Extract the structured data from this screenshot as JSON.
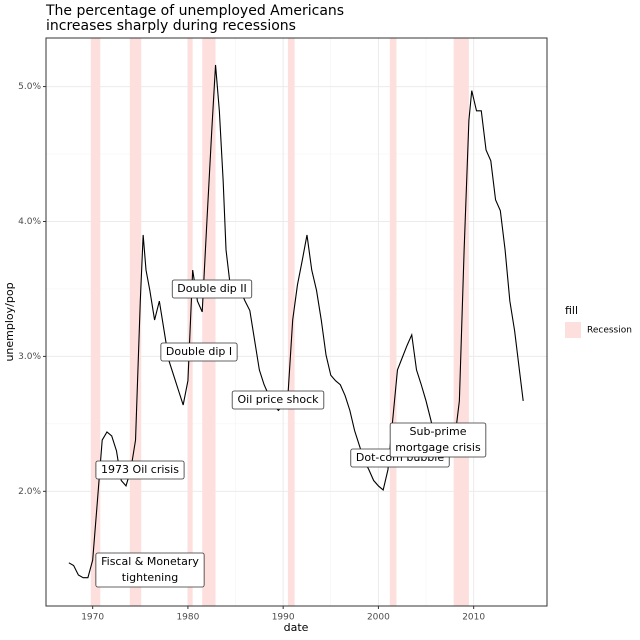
{
  "chart_data": {
    "type": "line",
    "title": [
      "The percentage of unemployed Americans",
      "increases sharply during recessions"
    ],
    "x_label": "date",
    "y_label": "unemploy/pop",
    "x": [
      1967.5,
      1968.0,
      1968.5,
      1969.0,
      1969.5,
      1970.0,
      1970.5,
      1971.0,
      1971.5,
      1972.0,
      1972.5,
      1973.0,
      1973.5,
      1974.0,
      1974.5,
      1975.0,
      1975.3,
      1975.6,
      1976.0,
      1976.5,
      1977.0,
      1977.5,
      1978.0,
      1978.5,
      1979.0,
      1979.5,
      1980.0,
      1980.5,
      1981.0,
      1981.5,
      1982.0,
      1982.5,
      1982.9,
      1983.3,
      1983.7,
      1984.0,
      1984.5,
      1985.0,
      1985.5,
      1986.0,
      1986.5,
      1987.0,
      1987.5,
      1988.0,
      1988.5,
      1989.0,
      1989.5,
      1990.0,
      1990.5,
      1991.0,
      1991.5,
      1992.0,
      1992.5,
      1993.0,
      1993.5,
      1994.0,
      1994.5,
      1995.0,
      1995.5,
      1996.0,
      1996.5,
      1997.0,
      1997.5,
      1998.0,
      1998.5,
      1999.0,
      1999.5,
      2000.0,
      2000.5,
      2001.0,
      2001.5,
      2002.0,
      2002.5,
      2003.0,
      2003.5,
      2004.0,
      2004.5,
      2005.0,
      2005.5,
      2006.0,
      2006.5,
      2007.0,
      2007.5,
      2008.0,
      2008.5,
      2009.0,
      2009.5,
      2009.8,
      2010.3,
      2010.8,
      2011.3,
      2011.8,
      2012.3,
      2012.8,
      2013.3,
      2013.8,
      2014.3,
      2014.8,
      2015.2
    ],
    "values": [
      1.47,
      1.45,
      1.38,
      1.36,
      1.36,
      1.49,
      1.93,
      2.38,
      2.44,
      2.41,
      2.3,
      2.08,
      2.04,
      2.16,
      2.38,
      3.41,
      3.9,
      3.64,
      3.49,
      3.27,
      3.41,
      3.19,
      2.97,
      2.86,
      2.75,
      2.64,
      2.82,
      3.64,
      3.41,
      3.33,
      4.01,
      4.67,
      5.16,
      4.82,
      4.3,
      3.79,
      3.49,
      3.56,
      3.49,
      3.41,
      3.34,
      3.12,
      2.9,
      2.79,
      2.71,
      2.64,
      2.6,
      2.64,
      2.71,
      3.27,
      3.53,
      3.71,
      3.9,
      3.64,
      3.49,
      3.27,
      3.01,
      2.86,
      2.82,
      2.79,
      2.71,
      2.6,
      2.45,
      2.34,
      2.23,
      2.16,
      2.08,
      2.04,
      2.01,
      2.16,
      2.53,
      2.9,
      2.99,
      3.08,
      3.16,
      2.9,
      2.79,
      2.67,
      2.53,
      2.38,
      2.3,
      2.27,
      2.3,
      2.38,
      2.67,
      3.79,
      4.75,
      4.97,
      4.82,
      4.82,
      4.53,
      4.45,
      4.16,
      4.08,
      3.79,
      3.41,
      3.19,
      2.9,
      2.67
    ],
    "color": "#000000",
    "recessions": [
      {
        "start": 1969.8,
        "end": 1970.8
      },
      {
        "start": 1973.9,
        "end": 1975.1
      },
      {
        "start": 1980.0,
        "end": 1980.5
      },
      {
        "start": 1981.5,
        "end": 1982.9
      },
      {
        "start": 1990.5,
        "end": 1991.2
      },
      {
        "start": 2001.2,
        "end": 2001.9
      },
      {
        "start": 2007.9,
        "end": 2009.5
      }
    ],
    "recession_color": "#fde0dd",
    "legend": {
      "title": "fill",
      "label": "Recession",
      "position": "right"
    },
    "annotations": [
      [
        "Fiscal & Monetary",
        "tightening"
      ],
      [
        "1973 Oil crisis"
      ],
      [
        "Double dip I"
      ],
      [
        "Double dip II"
      ],
      [
        "Oil price shock"
      ],
      [
        "Dot-com bubble"
      ],
      [
        "Sub-prime",
        "mortgage crisis"
      ]
    ],
    "xlim": [
      1965.1,
      2017.7
    ],
    "xticks": [
      1970,
      1980,
      1990,
      2000,
      2010
    ],
    "ylim": [
      1.15,
      5.36
    ],
    "yticks": [
      {
        "value": 2.0,
        "label": "2.0%"
      },
      {
        "value": 3.0,
        "label": "3.0%"
      },
      {
        "value": 4.0,
        "label": "4.0%"
      },
      {
        "value": 5.0,
        "label": "5.0%"
      }
    ],
    "grid": true
  }
}
